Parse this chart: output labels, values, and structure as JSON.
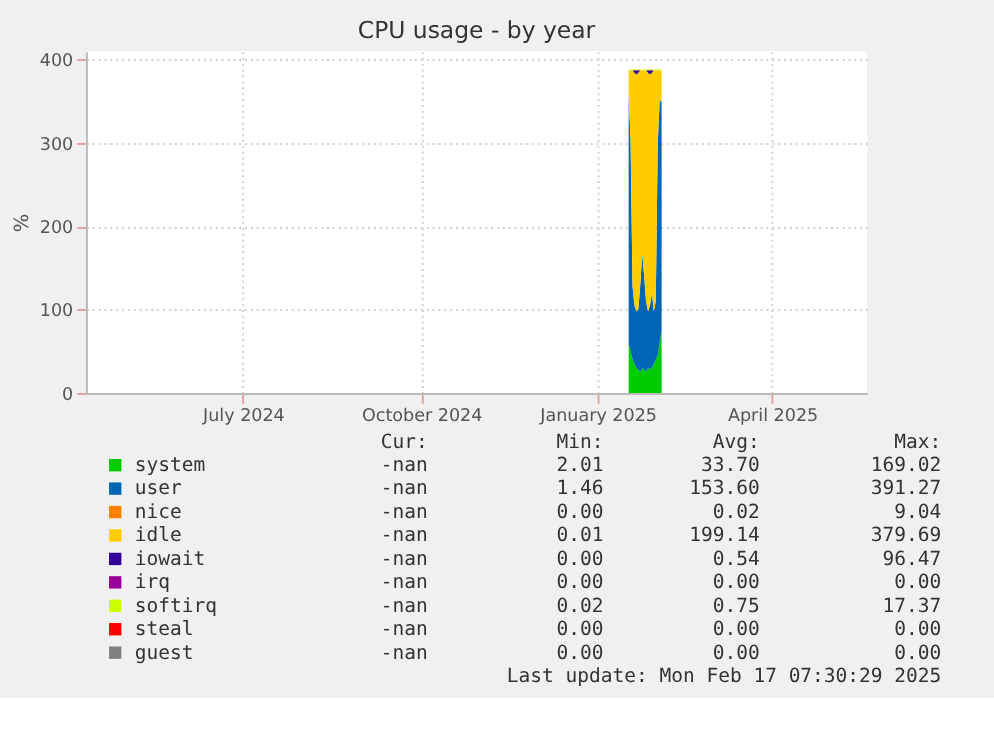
{
  "chart_data": {
    "type": "area",
    "stacked": true,
    "title": "CPU usage - by year",
    "ylabel": "%",
    "x": [
      "2025-01-31",
      "2025-02-01",
      "2025-02-02",
      "2025-02-03",
      "2025-02-04",
      "2025-02-05",
      "2025-02-06",
      "2025-02-07",
      "2025-02-08",
      "2025-02-09",
      "2025-02-10",
      "2025-02-11",
      "2025-02-12",
      "2025-02-13",
      "2025-02-14",
      "2025-02-15",
      "2025-02-16",
      "2025-02-17"
    ],
    "series": [
      {
        "name": "system",
        "color": "#00cc00",
        "values": [
          59,
          50,
          40,
          35,
          30,
          28,
          25,
          30,
          28,
          25,
          30,
          28,
          30,
          35,
          40,
          45,
          60,
          75
        ]
      },
      {
        "name": "user",
        "color": "#0066b3",
        "values": [
          298,
          250,
          88,
          70,
          68,
          72,
          105,
          137,
          112,
          85,
          68,
          77,
          90,
          63,
          70,
          255,
          290,
          275
        ]
      },
      {
        "name": "nice",
        "color": "#ff8000",
        "values": [
          null,
          null,
          null,
          null,
          null,
          null,
          null,
          null,
          null,
          null,
          null,
          null,
          null,
          null,
          null,
          null,
          null,
          null
        ]
      },
      {
        "name": "idle",
        "color": "#ffcc00",
        "values": [
          30,
          87,
          259,
          279,
          284,
          284,
          257,
          220,
          247,
          277,
          286,
          277,
          264,
          289,
          277,
          87,
          37,
          37
        ]
      },
      {
        "name": "iowait",
        "color": "#330099",
        "values": [
          0,
          0,
          0,
          3,
          5,
          3,
          0,
          0,
          0,
          0,
          3,
          5,
          3,
          0,
          0,
          0,
          0,
          0
        ]
      },
      {
        "name": "irq",
        "color": "#990099",
        "values": [
          null,
          null,
          null,
          null,
          null,
          null,
          null,
          null,
          null,
          null,
          null,
          null,
          null,
          null,
          null,
          null,
          null,
          null
        ]
      },
      {
        "name": "softirq",
        "color": "#ccff00",
        "values": [
          1,
          1,
          1,
          1,
          1,
          1,
          1,
          1,
          1,
          1,
          1,
          1,
          1,
          1,
          1,
          1,
          1,
          1
        ]
      },
      {
        "name": "steal",
        "color": "#ff0000",
        "values": [
          null,
          null,
          null,
          null,
          null,
          null,
          null,
          null,
          null,
          null,
          null,
          null,
          null,
          null,
          null,
          null,
          null,
          null
        ]
      },
      {
        "name": "guest",
        "color": "#808080",
        "values": [
          null,
          null,
          null,
          null,
          null,
          null,
          null,
          null,
          null,
          null,
          null,
          null,
          null,
          null,
          null,
          null,
          null,
          null
        ]
      }
    ],
    "xlim": [
      "2024-04-26",
      "2025-06-03"
    ],
    "xticks": [
      {
        "value": "2024-07-16",
        "label": "July 2024"
      },
      {
        "value": "2024-10-16",
        "label": "October 2024"
      },
      {
        "value": "2025-01-15",
        "label": "January 2025"
      },
      {
        "value": "2025-04-15",
        "label": "April 2025"
      }
    ],
    "ylim": [
      0,
      410
    ],
    "yticks": [
      0,
      100,
      200,
      300,
      400
    ],
    "grid": true,
    "legend": "bottom",
    "annotations": [
      "Cur: Min: Avg: Max:",
      "-nan 2.01 33.70 169.02",
      "-nan 1.46 153.60 391.27",
      "-nan 0.00 0.02 9.04",
      "-nan 0.01 199.14 379.69",
      "-nan 0.00 0.54 96.47",
      "-nan 0.00 0.00 0.00",
      "-nan 0.02 0.75 17.37",
      "-nan 0.00 0.00 0.00",
      "-nan 0.00 0.00 0.00",
      "Last update: Mon Feb 17 07:30:29 2025"
    ]
  }
}
